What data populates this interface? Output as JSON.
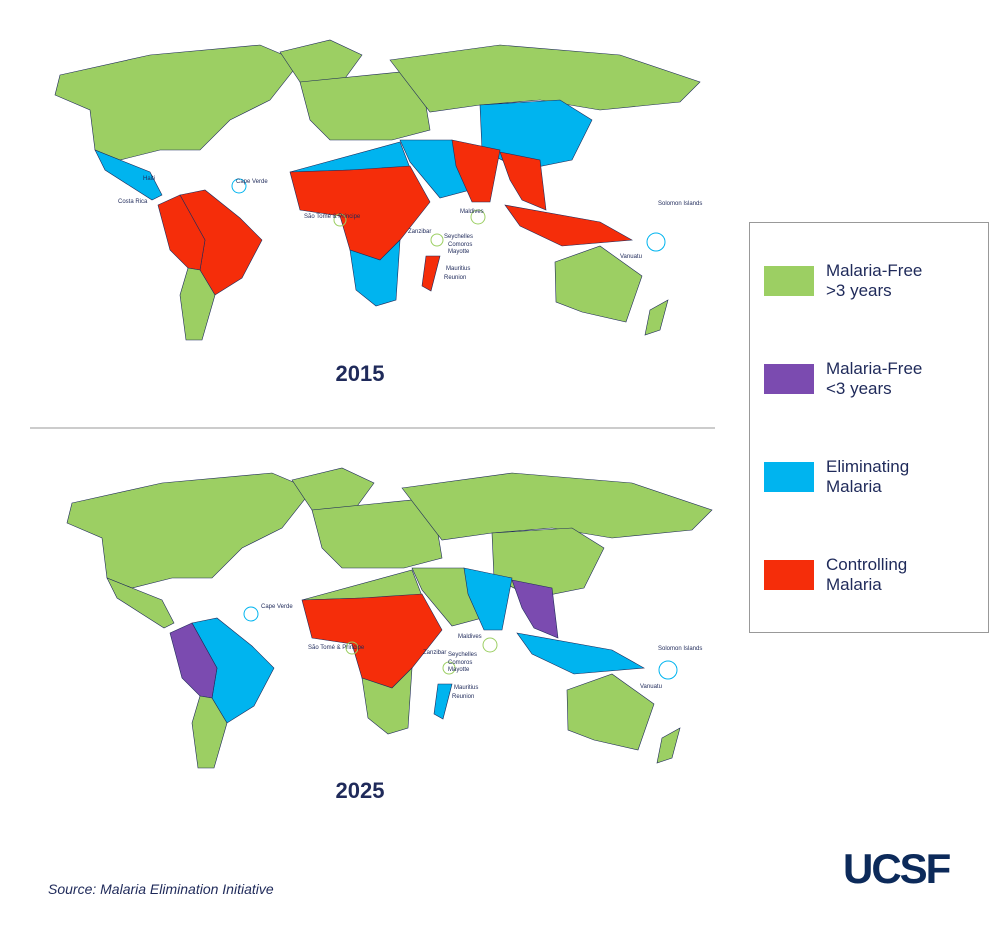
{
  "maps": [
    {
      "year": "2015",
      "labels": [
        "Haiti",
        "Costa Rica",
        "Cape Verde",
        "São Tomé & Príncipe",
        "Zanzibar",
        "Maldives",
        "Seychelles",
        "Comoros",
        "Mayotte",
        "Mauritius",
        "Reunion",
        "Solomon Islands",
        "Vanuatu"
      ]
    },
    {
      "year": "2025",
      "labels": [
        "Cape Verde",
        "São Tomé & Príncipe",
        "Zanzibar",
        "Maldives",
        "Seychelles",
        "Comoros",
        "Mayotte",
        "Mauritius",
        "Reunion",
        "Solomon Islands",
        "Vanuatu"
      ]
    }
  ],
  "legend": {
    "items": [
      {
        "label": "Malaria-Free >3 years",
        "color": "#9ccf63"
      },
      {
        "label": "Malaria-Free <3 years",
        "color": "#7b4bb0"
      },
      {
        "label": "Eliminating Malaria",
        "color": "#00b4ef"
      },
      {
        "label": "Controlling Malaria",
        "color": "#f52d0a"
      }
    ]
  },
  "source": "Source: Malaria Elimination Initiative",
  "logo": "UCSF"
}
